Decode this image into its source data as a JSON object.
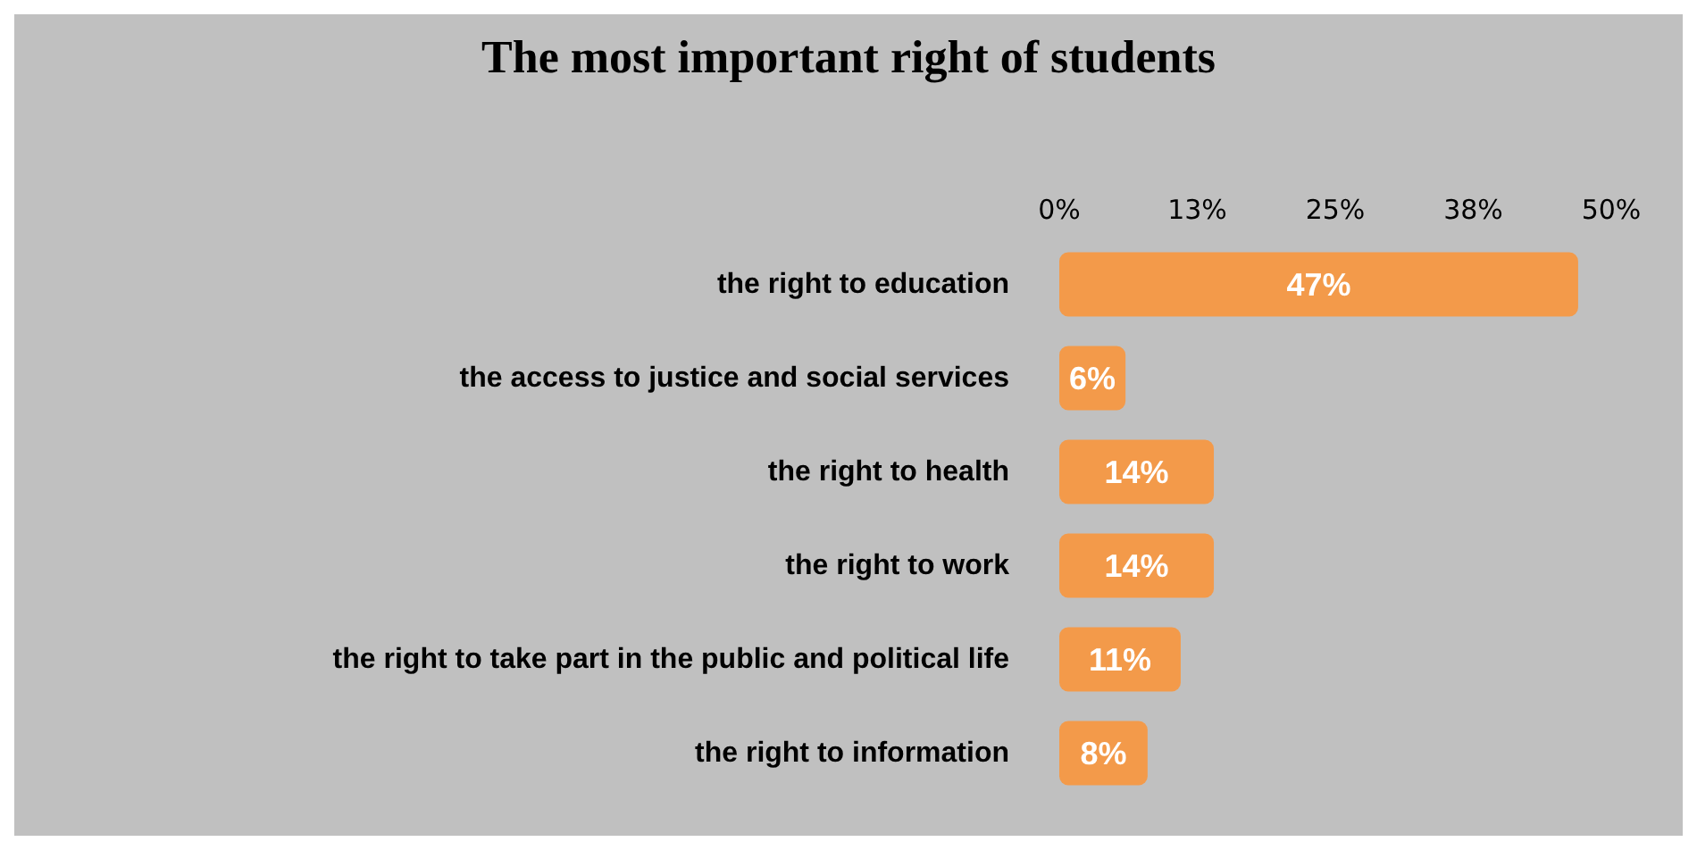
{
  "chart_data": {
    "type": "bar",
    "orientation": "horizontal",
    "title": "The most important right of students",
    "categories": [
      "the right to education",
      "the access to justice and social services",
      "the right to health",
      "the right to work",
      "the right to take part in the public and political life",
      "the right to information"
    ],
    "values": [
      47,
      6,
      14,
      14,
      11,
      8
    ],
    "value_labels": [
      "47%",
      "6%",
      "14%",
      "14%",
      "11%",
      "8%"
    ],
    "color": "#f39a4a",
    "xlim": [
      0,
      50
    ],
    "xticks": [
      {
        "value": 0,
        "label": "0%"
      },
      {
        "value": 12.5,
        "label": "13%"
      },
      {
        "value": 25,
        "label": "25%"
      },
      {
        "value": 37.5,
        "label": "38%"
      },
      {
        "value": 50,
        "label": "50%"
      }
    ],
    "grid": false
  }
}
